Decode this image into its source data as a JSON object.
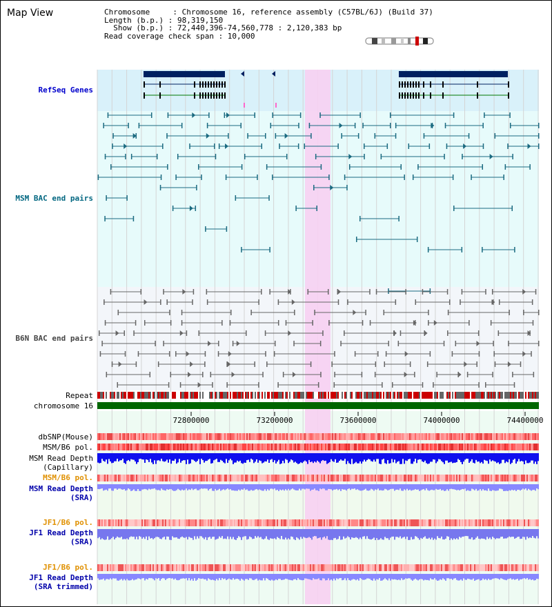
{
  "title": "Map View",
  "info": {
    "line1": "Chromosome     : Chromosome 16, reference assembly (C57BL/6J) (Build 37)",
    "line2": "Length (b.p.) : 98,319,150",
    "line3": "  Show (b.p.) : 72,440,396-74,560,778 : 2,120,383 bp",
    "line4": "Read coverage check span : 10,000"
  },
  "tracks": {
    "refseq": "RefSeq Genes",
    "msm_bac": "MSM BAC end pairs",
    "b6n_bac": "B6N BAC end pairs",
    "repeat": "Repeat",
    "chromosome": "chromosome 16",
    "dbsnp": "dbSNP(Mouse)",
    "msm_b6_pol_1": "MSM/B6 pol.",
    "msm_read_depth_cap": "MSM Read Depth\n(Capillary)",
    "msm_b6_pol_2": "MSM/B6 pol.",
    "msm_read_depth_sra": "MSM Read Depth\n(SRA)",
    "jf1_b6_pol_1": "JF1/B6 pol.",
    "jf1_read_depth_sra": "JF1 Read Depth\n(SRA)",
    "jf1_b6_pol_2": "JF1/B6 pol.",
    "jf1_read_depth_trim": "JF1 Read Depth\n(SRA trimmed)"
  },
  "axis": {
    "ticks": [
      "72800000",
      "73200000",
      "73600000",
      "74000000",
      "74400000"
    ]
  },
  "colors": {
    "refseq_label": "#0000cc",
    "msm_label": "#006680",
    "b6n_label": "#444444",
    "orange_label": "#e09000",
    "blue_label": "#0000aa",
    "highlight": "#f7d0f2"
  }
}
